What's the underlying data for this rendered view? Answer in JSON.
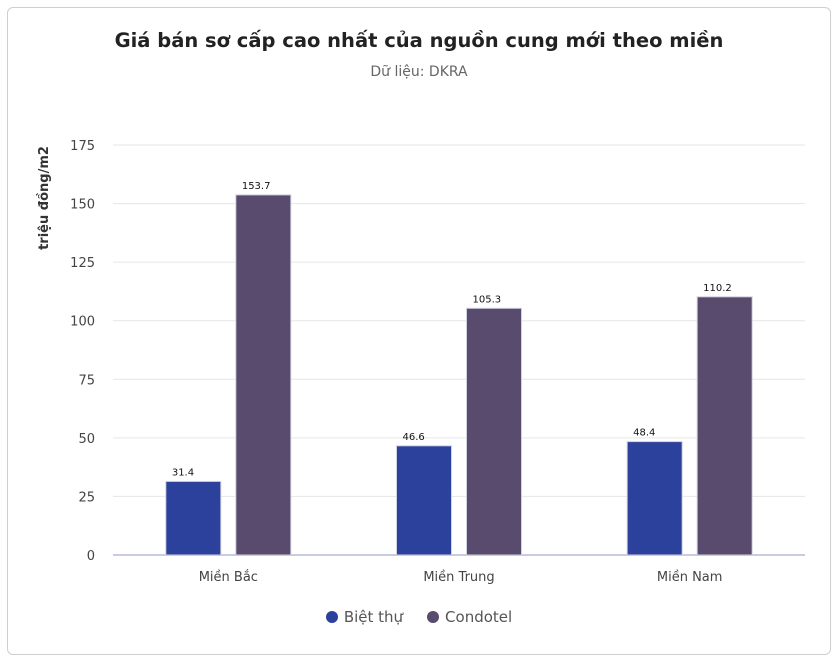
{
  "chart_data": {
    "type": "bar",
    "title": "Giá bán sơ cấp cao nhất của nguồn cung mới theo miền",
    "subtitle": "Dữ liệu: DKRA",
    "xlabel": "",
    "ylabel": "triệu đồng/m2",
    "categories": [
      "Miền Bắc",
      "Miền Trung",
      "Miền Nam"
    ],
    "series": [
      {
        "name": "Biệt thự",
        "values": [
          31.4,
          46.6,
          48.4
        ],
        "color": "#2c419b"
      },
      {
        "name": "Condotel",
        "values": [
          153.7,
          105.3,
          110.2
        ],
        "color": "#584b6e"
      }
    ],
    "yticks": [
      0,
      25,
      50,
      75,
      100,
      125,
      150,
      175
    ],
    "ylim": [
      0,
      175
    ],
    "grid": true,
    "legend": "bottom"
  }
}
